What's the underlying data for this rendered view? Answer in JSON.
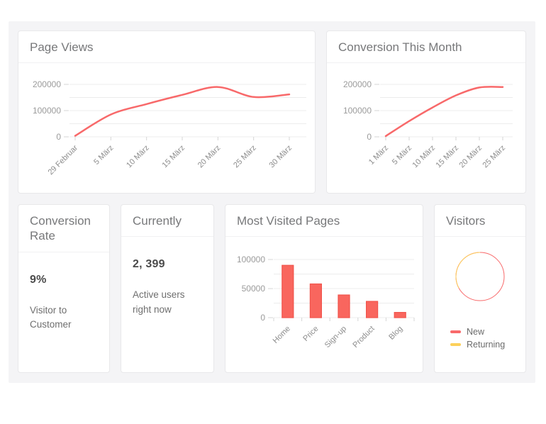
{
  "colors": {
    "accent_line": "#f8696a",
    "bar_fill": "#f9665e",
    "bar_border": "#f1544c",
    "yellow": "#fcd05b",
    "grid": "#ececec",
    "tick": "#d6d6d6",
    "axis_label_y": "#9b9b9b",
    "axis_label_x": "#8c8c8c",
    "panel_bg": "#f4f4f6",
    "card_border": "#e8e8ea"
  },
  "cards": {
    "conversion_rate": {
      "title": "Conversion Rate",
      "value": "9%",
      "subtitle": "Visitor to Customer"
    },
    "currently": {
      "title": "Currently",
      "value": "2, 399",
      "subtitle": "Active users right now"
    }
  },
  "chart_data": [
    {
      "id": "page_views",
      "type": "line",
      "title": "Page Views",
      "x": [
        "29 Februar",
        "5 März",
        "10 März",
        "15 März",
        "20 März",
        "25 März",
        "30 März"
      ],
      "values": [
        4000,
        85000,
        125000,
        160000,
        190000,
        152000,
        162000
      ],
      "ylim": [
        0,
        200000
      ],
      "grid_step": 50000,
      "yticks_labeled": [
        0,
        100000,
        200000
      ],
      "xlabel": "",
      "ylabel": "",
      "grid": true,
      "line_color": "#f8696a"
    },
    {
      "id": "conversion_month",
      "type": "line",
      "title": "Conversion This Month",
      "x": [
        "1 März",
        "5 März",
        "10 März",
        "15 März",
        "20 März",
        "25 März"
      ],
      "values": [
        3000,
        60000,
        112000,
        158000,
        188000,
        190000
      ],
      "ylim": [
        0,
        200000
      ],
      "grid_step": 50000,
      "yticks_labeled": [
        0,
        100000,
        200000
      ],
      "xlabel": "",
      "ylabel": "",
      "grid": true,
      "line_color": "#f8696a"
    },
    {
      "id": "most_visited",
      "type": "bar",
      "title": "Most Visited Pages",
      "categories": [
        "Home",
        "Price",
        "Sign-up",
        "Product",
        "Blog"
      ],
      "values": [
        90000,
        58000,
        39000,
        28000,
        9000
      ],
      "ylim": [
        0,
        100000
      ],
      "grid_step": 25000,
      "yticks_labeled": [
        0,
        50000,
        100000
      ],
      "xlabel": "",
      "ylabel": "",
      "grid": true,
      "bar_fill": "#f9665e",
      "bar_border": "#f1544c"
    },
    {
      "id": "visitors",
      "type": "pie",
      "title": "Visitors",
      "style": "thin-ring",
      "legend_position": "bottom-left",
      "series": [
        {
          "name": "New",
          "pct": 67,
          "color": "#f8696a"
        },
        {
          "name": "Returning",
          "pct": 33,
          "color": "#fcd05b"
        }
      ]
    }
  ]
}
